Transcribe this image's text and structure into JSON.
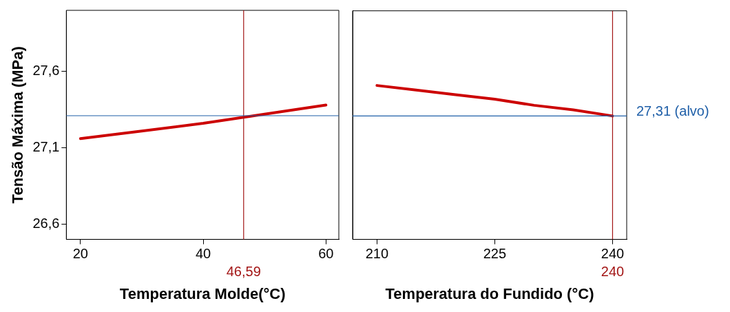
{
  "chart_data": [
    {
      "type": "line",
      "xlabel": "Temperatura Molde(°C)",
      "ylabel": "Tensão Máxima (MPa)",
      "x": [
        20,
        30,
        40,
        50,
        60
      ],
      "series": [
        {
          "color": "#cc0000",
          "values": [
            27.16,
            27.21,
            27.26,
            27.32,
            27.38
          ]
        }
      ],
      "xlim": [
        17.7,
        62.1
      ],
      "xticks": [
        20,
        40,
        60
      ],
      "ylim": [
        26.5,
        28.0
      ],
      "yticks": [
        {
          "value": 26.6,
          "label": "26,6"
        },
        {
          "value": 27.1,
          "label": "27,1"
        },
        {
          "value": 27.6,
          "label": "27,6"
        }
      ],
      "ref_lines": [
        {
          "axis": "x",
          "value": 46.59,
          "label": "46,59",
          "color": "#a31515"
        },
        {
          "axis": "y",
          "value": 27.31,
          "color": "#1f5fa8"
        }
      ]
    },
    {
      "type": "line",
      "xlabel": "Temperatura do Fundido (°C)",
      "x": [
        210,
        215,
        220,
        225,
        230,
        235,
        240
      ],
      "series": [
        {
          "color": "#cc0000",
          "values": [
            27.51,
            27.48,
            27.45,
            27.42,
            27.38,
            27.35,
            27.31
          ]
        }
      ],
      "xlim": [
        206.9,
        241.8
      ],
      "xticks": [
        210,
        225,
        240
      ],
      "ylim": [
        26.5,
        28.0
      ],
      "tick_labels": "x",
      "ref_lines": [
        {
          "axis": "x",
          "value": 240,
          "label": "240",
          "color": "#a31515"
        },
        {
          "axis": "y",
          "value": 27.31,
          "label": "27,31 (alvo)",
          "color": "#1f5fa8"
        }
      ]
    }
  ]
}
